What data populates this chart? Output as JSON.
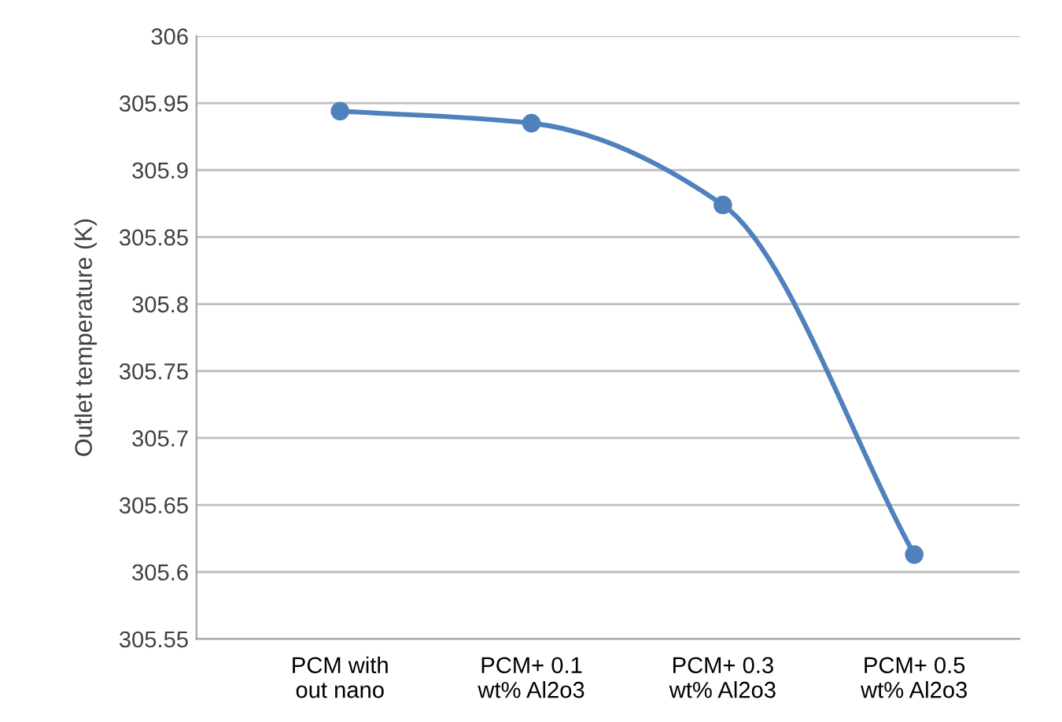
{
  "chart_data": {
    "type": "line",
    "ylabel": "Outlet temperature (K)",
    "categories": [
      "PCM with\nout nano",
      "PCM+ 0.1\nwt% Al2o3",
      "PCM+ 0.3\nwt% Al2o3",
      "PCM+ 0.5\nwt% Al2o3"
    ],
    "series": [
      {
        "color": "#4f81bd",
        "values": [
          305.944,
          305.935,
          305.874,
          305.613
        ]
      }
    ],
    "ylim": [
      305.55,
      306
    ],
    "yticks": [
      305.55,
      305.6,
      305.65,
      305.7,
      305.75,
      305.8,
      305.85,
      305.9,
      305.95,
      306
    ],
    "grid": "y",
    "marker": "circle",
    "line_style": "solid"
  }
}
